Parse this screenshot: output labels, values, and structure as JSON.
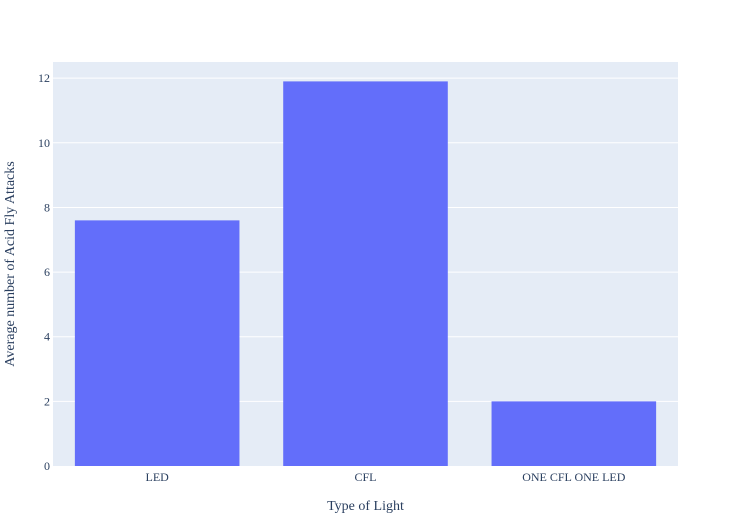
{
  "chart_data": {
    "type": "bar",
    "title": "",
    "categories": [
      "LED",
      "CFL",
      "ONE CFL ONE LED"
    ],
    "values": [
      7.6,
      11.9,
      2.0
    ],
    "xlabel": "Type of Light",
    "ylabel": "Average number of Acid Fly Attacks",
    "ylim": [
      0,
      12.5
    ],
    "yticks": [
      0,
      2,
      4,
      6,
      8,
      10,
      12
    ],
    "grid": true,
    "legend": "none",
    "colors": {
      "bar": "#636efa",
      "plot_background": "#e5ecf6",
      "gridline": "#ffffff",
      "text": "#2a3f5f"
    }
  }
}
